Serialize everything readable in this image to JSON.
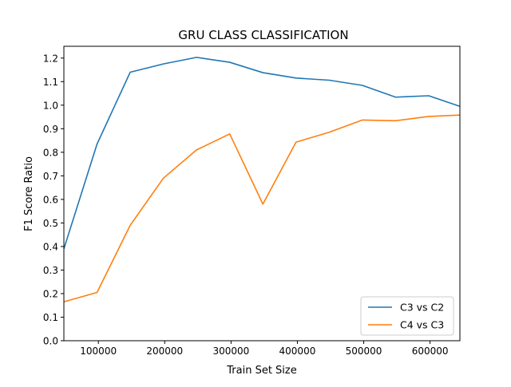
{
  "chart_data": {
    "type": "line",
    "title": "GRU CLASS CLASSIFICATION",
    "xlabel": "Train Set Size",
    "ylabel": "F1 Score Ratio",
    "xlim": [
      48000,
      645000
    ],
    "ylim": [
      0.0,
      1.25
    ],
    "xticks": [
      100000,
      200000,
      300000,
      400000,
      500000,
      600000
    ],
    "xtick_labels": [
      "100000",
      "200000",
      "300000",
      "400000",
      "500000",
      "600000"
    ],
    "yticks": [
      0.0,
      0.1,
      0.2,
      0.3,
      0.4,
      0.5,
      0.6,
      0.7,
      0.8,
      0.9,
      1.0,
      1.1,
      1.2
    ],
    "ytick_labels": [
      "0.0",
      "0.1",
      "0.2",
      "0.3",
      "0.4",
      "0.5",
      "0.6",
      "0.7",
      "0.8",
      "0.9",
      "1.0",
      "1.1",
      "1.2"
    ],
    "grid": false,
    "legend_position": "lower-right",
    "x": [
      48000,
      98000,
      148000,
      198000,
      248000,
      298000,
      348000,
      398000,
      448000,
      498000,
      548000,
      598000,
      645000
    ],
    "series": [
      {
        "name": "C3 vs C2",
        "color": "#1f77b4",
        "values": [
          0.39,
          0.835,
          1.14,
          1.175,
          1.203,
          1.182,
          1.138,
          1.115,
          1.106,
          1.084,
          1.034,
          1.04,
          0.995
        ]
      },
      {
        "name": "C4 vs C3",
        "color": "#ff7f0e",
        "values": [
          0.165,
          0.205,
          0.49,
          0.69,
          0.81,
          0.878,
          0.58,
          0.843,
          0.885,
          0.937,
          0.934,
          0.952,
          0.958
        ]
      }
    ]
  }
}
